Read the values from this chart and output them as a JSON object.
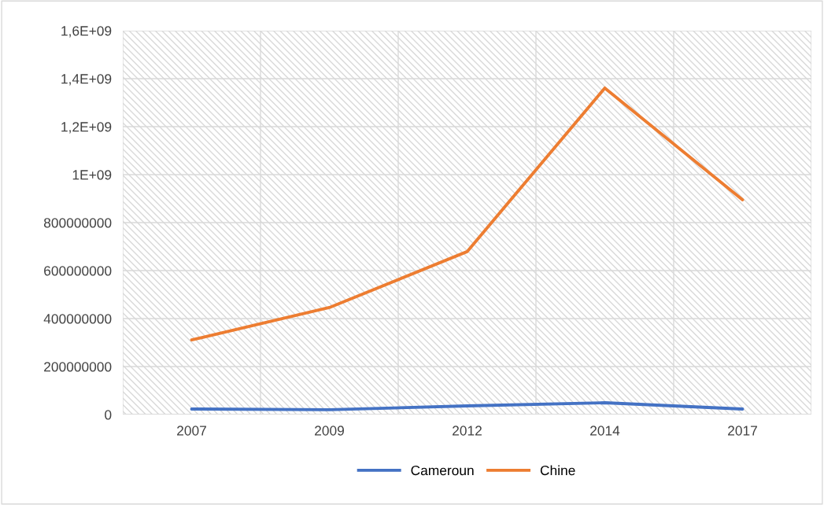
{
  "chart_data": {
    "type": "line",
    "categories": [
      "2007",
      "2009",
      "2012",
      "2014",
      "2017"
    ],
    "series": [
      {
        "name": "Cameroun",
        "color": "#4472c4",
        "values": [
          23000000,
          20000000,
          36000000,
          49000000,
          23000000
        ]
      },
      {
        "name": "Chine",
        "color": "#ed7d31",
        "values": [
          311000000,
          446000000,
          679000000,
          1361000000,
          895000000
        ]
      }
    ],
    "ylim": [
      0,
      1600000000
    ],
    "yticks": [
      0,
      200000000,
      400000000,
      600000000,
      800000000,
      {
        "value": 1000000000,
        "label": "1E+09"
      },
      {
        "value": 1200000000,
        "label": "1,2E+09"
      },
      {
        "value": 1400000000,
        "label": "1,4E+09"
      },
      {
        "value": 1600000000,
        "label": "1,6E+09"
      }
    ],
    "grid": true,
    "legend": "bottom",
    "marker": "none",
    "line_style": "solid"
  }
}
